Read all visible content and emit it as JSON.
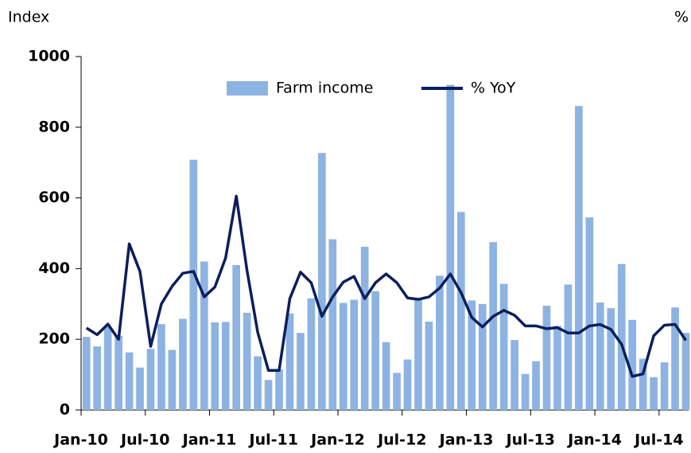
{
  "chart_data": {
    "type": "bar-line",
    "y_label": "Index",
    "y2_label": "%",
    "categories": [
      "Jan-10",
      null,
      null,
      null,
      null,
      null,
      "Jul-10",
      null,
      null,
      null,
      null,
      null,
      "Jan-11",
      null,
      null,
      null,
      null,
      null,
      "Jul-11",
      null,
      null,
      null,
      null,
      null,
      "Jan-12",
      null,
      null,
      null,
      null,
      null,
      "Jul-12",
      null,
      null,
      null,
      null,
      null,
      "Jan-13",
      null,
      null,
      null,
      null,
      null,
      "Jul-13",
      null,
      null,
      null,
      null,
      null,
      "Jan-14",
      null,
      null,
      null,
      null,
      null,
      "Jul-14",
      null,
      null
    ],
    "series": [
      {
        "name": "Farm income",
        "type": "bar",
        "color": "#8db3e2",
        "values": [
          207,
          180,
          235,
          210,
          163,
          120,
          173,
          243,
          170,
          258,
          708,
          420,
          248,
          249,
          410,
          275,
          152,
          85,
          115,
          273,
          218,
          316,
          727,
          483,
          303,
          312,
          462,
          336,
          192,
          105,
          143,
          316,
          250,
          380,
          920,
          560,
          310,
          300,
          475,
          357,
          198,
          102,
          138,
          295,
          238,
          355,
          860,
          545,
          304,
          288,
          413,
          255,
          145,
          93,
          135,
          290,
          218
        ]
      },
      {
        "name": "% YoY",
        "type": "line",
        "color": "#0b1f5c",
        "values": [
          232,
          213,
          243,
          200,
          470,
          392,
          180,
          300,
          350,
          387,
          392,
          320,
          348,
          430,
          605,
          395,
          220,
          112,
          112,
          315,
          390,
          360,
          265,
          320,
          362,
          378,
          315,
          360,
          385,
          360,
          317,
          313,
          320,
          345,
          385,
          332,
          262,
          235,
          265,
          282,
          268,
          238,
          238,
          230,
          233,
          218,
          218,
          238,
          242,
          228,
          186,
          95,
          102,
          210,
          240,
          242,
          197
        ]
      }
    ],
    "ylim": [
      0,
      1000
    ],
    "yticks": [
      0,
      200,
      400,
      600,
      800,
      1000
    ],
    "legend": "top"
  }
}
